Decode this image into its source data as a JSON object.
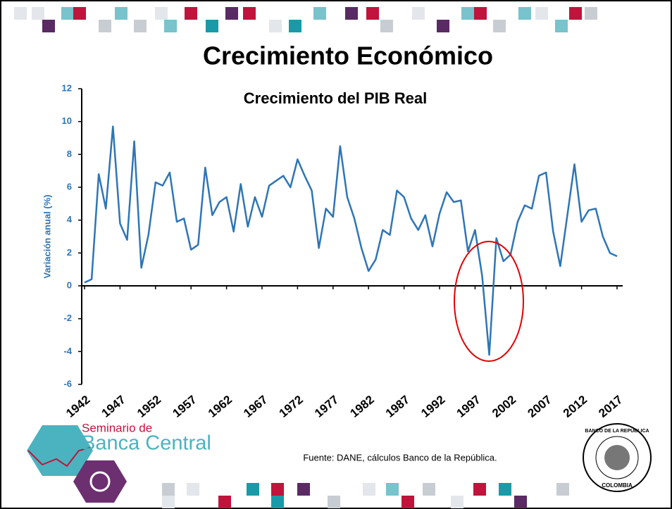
{
  "slide": {
    "title": "Crecimiento Económico",
    "source": "Fuente: DANE, cálculos Banco de la República.",
    "logo": [
      "Seminario de",
      "Banca Central"
    ],
    "seal": [
      "BANCO DE LA REPUBLICA",
      "COLOMBIA"
    ]
  },
  "chart_data": {
    "type": "line",
    "title": "Crecimiento del PIB Real",
    "y_label": "Variación anual (%)",
    "x": [
      1942,
      1943,
      1944,
      1945,
      1946,
      1947,
      1948,
      1949,
      1950,
      1951,
      1952,
      1953,
      1954,
      1955,
      1956,
      1957,
      1958,
      1959,
      1960,
      1961,
      1962,
      1963,
      1964,
      1965,
      1966,
      1967,
      1968,
      1969,
      1970,
      1971,
      1972,
      1973,
      1974,
      1975,
      1976,
      1977,
      1978,
      1979,
      1980,
      1981,
      1982,
      1983,
      1984,
      1985,
      1986,
      1987,
      1988,
      1989,
      1990,
      1991,
      1992,
      1993,
      1994,
      1995,
      1996,
      1997,
      1998,
      1999,
      2000,
      2001,
      2002,
      2003,
      2004,
      2005,
      2006,
      2007,
      2008,
      2009,
      2010,
      2011,
      2012,
      2013,
      2014,
      2015,
      2016,
      2017
    ],
    "series": [
      {
        "name": "PIB Real",
        "color": "#2e75b6",
        "values": [
          0.2,
          0.4,
          6.8,
          4.7,
          9.7,
          3.8,
          2.8,
          8.8,
          1.1,
          3.1,
          6.3,
          6.1,
          6.9,
          3.9,
          4.1,
          2.2,
          2.5,
          7.2,
          4.3,
          5.1,
          5.4,
          3.3,
          6.2,
          3.6,
          5.4,
          4.2,
          6.1,
          6.4,
          6.7,
          6.0,
          7.7,
          6.7,
          5.8,
          2.3,
          4.7,
          4.2,
          8.5,
          5.4,
          4.1,
          2.3,
          0.9,
          1.6,
          3.4,
          3.1,
          5.8,
          5.4,
          4.1,
          3.4,
          4.3,
          2.4,
          4.4,
          5.7,
          5.1,
          5.2,
          2.1,
          3.4,
          0.6,
          -4.2,
          2.9,
          1.5,
          1.9,
          3.9,
          4.9,
          4.7,
          6.7,
          6.9,
          3.3,
          1.2,
          4.3,
          7.4,
          3.9,
          4.6,
          4.7,
          3.0,
          2.0,
          1.8
        ]
      }
    ],
    "xlim": [
      1942,
      2017
    ],
    "xticks": [
      1942,
      1947,
      1952,
      1957,
      1962,
      1967,
      1972,
      1977,
      1982,
      1987,
      1992,
      1997,
      2002,
      2007,
      2012,
      2017
    ],
    "ylim": [
      -6,
      12
    ],
    "yticks": [
      -6,
      -4,
      -2,
      0,
      2,
      4,
      6,
      8,
      10,
      12
    ],
    "grid": false
  }
}
